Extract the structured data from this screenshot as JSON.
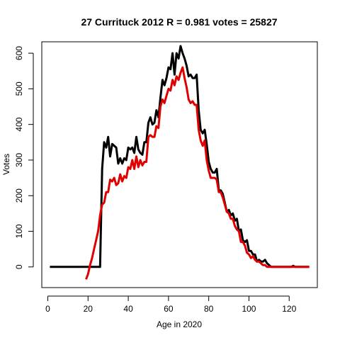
{
  "chart_data": {
    "type": "line",
    "title": "27 Currituck 2012 R = 0.981 votes = 25827",
    "xlabel": "Age in 2020",
    "ylabel": "Votes",
    "xlim": [
      -3,
      134
    ],
    "ylim": [
      -58,
      632
    ],
    "xticks": [
      0,
      20,
      40,
      60,
      80,
      100,
      120
    ],
    "yticks": [
      0,
      100,
      200,
      300,
      400,
      500,
      600
    ],
    "grid": false,
    "series": [
      {
        "color": "#000000",
        "x": [
          1,
          2,
          3,
          4,
          5,
          6,
          7,
          8,
          9,
          10,
          11,
          12,
          13,
          14,
          15,
          16,
          17,
          18,
          19,
          20,
          21,
          22,
          23,
          24,
          25,
          26,
          27,
          28,
          29,
          30,
          31,
          32,
          33,
          34,
          35,
          36,
          37,
          38,
          39,
          40,
          41,
          42,
          43,
          44,
          45,
          46,
          47,
          48,
          49,
          50,
          51,
          52,
          53,
          54,
          55,
          56,
          57,
          58,
          59,
          60,
          61,
          62,
          63,
          64,
          65,
          66,
          67,
          68,
          69,
          70,
          71,
          72,
          73,
          74,
          75,
          76,
          77,
          78,
          79,
          80,
          81,
          82,
          83,
          84,
          85,
          86,
          87,
          88,
          89,
          90,
          91,
          92,
          93,
          94,
          95,
          96,
          97,
          98,
          99,
          100,
          101,
          102,
          103,
          104,
          105,
          106,
          107,
          108,
          109,
          110,
          111,
          112,
          113,
          114,
          115,
          116,
          117,
          118,
          119,
          120,
          121,
          122,
          123,
          124,
          125,
          126,
          127,
          128,
          129,
          130
        ],
        "y": [
          0,
          0,
          0,
          0,
          0,
          0,
          0,
          0,
          0,
          0,
          0,
          0,
          0,
          0,
          0,
          0,
          0,
          0,
          0,
          0,
          0,
          0,
          0,
          0,
          0,
          0,
          275,
          350,
          335,
          365,
          310,
          345,
          340,
          335,
          290,
          305,
          290,
          305,
          300,
          335,
          330,
          335,
          320,
          365,
          330,
          320,
          315,
          350,
          350,
          405,
          420,
          400,
          405,
          440,
          420,
          475,
          525,
          510,
          530,
          560,
          555,
          600,
          540,
          600,
          585,
          620,
          600,
          585,
          565,
          535,
          540,
          530,
          530,
          540,
          440,
          385,
          375,
          385,
          345,
          295,
          275,
          265,
          265,
          275,
          215,
          215,
          205,
          180,
          155,
          160,
          145,
          150,
          130,
          135,
          100,
          105,
          75,
          70,
          75,
          45,
          45,
          35,
          35,
          15,
          20,
          15,
          15,
          20,
          10,
          5,
          0,
          0,
          0,
          0,
          0,
          0,
          0,
          0,
          0,
          0,
          0,
          3,
          0,
          0,
          0,
          0,
          0,
          0,
          0,
          0
        ],
        "line_width": 3
      },
      {
        "color": "#e00000",
        "x": [
          19,
          20,
          21,
          22,
          23,
          24,
          25,
          26,
          27,
          28,
          29,
          30,
          31,
          32,
          33,
          34,
          35,
          36,
          37,
          38,
          39,
          40,
          41,
          42,
          43,
          44,
          45,
          46,
          47,
          48,
          49,
          50,
          51,
          52,
          53,
          54,
          55,
          56,
          57,
          58,
          59,
          60,
          61,
          62,
          63,
          64,
          65,
          66,
          67,
          68,
          69,
          70,
          71,
          72,
          73,
          74,
          75,
          76,
          77,
          78,
          79,
          80,
          81,
          82,
          83,
          84,
          85,
          86,
          87,
          88,
          89,
          90,
          91,
          92,
          93,
          94,
          95,
          96,
          97,
          98,
          99,
          100,
          101,
          102,
          103,
          104,
          105,
          106,
          107,
          108,
          109,
          110,
          111,
          112,
          113,
          114,
          115,
          116,
          117,
          118,
          119,
          120,
          121,
          122,
          123,
          124,
          125,
          126,
          127,
          128,
          129,
          130
        ],
        "y": [
          -35,
          -20,
          5,
          25,
          50,
          75,
          100,
          145,
          175,
          180,
          210,
          210,
          245,
          240,
          250,
          230,
          235,
          260,
          240,
          255,
          250,
          280,
          275,
          300,
          275,
          310,
          280,
          300,
          285,
          295,
          295,
          365,
          370,
          365,
          365,
          395,
          390,
          450,
          470,
          460,
          480,
          500,
          495,
          525,
          510,
          535,
          525,
          545,
          560,
          530,
          505,
          470,
          460,
          465,
          455,
          455,
          385,
          355,
          340,
          355,
          300,
          270,
          250,
          250,
          250,
          245,
          210,
          210,
          195,
          175,
          155,
          150,
          135,
          135,
          115,
          105,
          100,
          70,
          70,
          60,
          40,
          35,
          25,
          30,
          20,
          15,
          15,
          10,
          5,
          5,
          0,
          0,
          0,
          0,
          0,
          0,
          0,
          0,
          0,
          0,
          0,
          0,
          0,
          0,
          0,
          0,
          0,
          0,
          0,
          0,
          0,
          0
        ],
        "line_width": 3
      }
    ]
  }
}
